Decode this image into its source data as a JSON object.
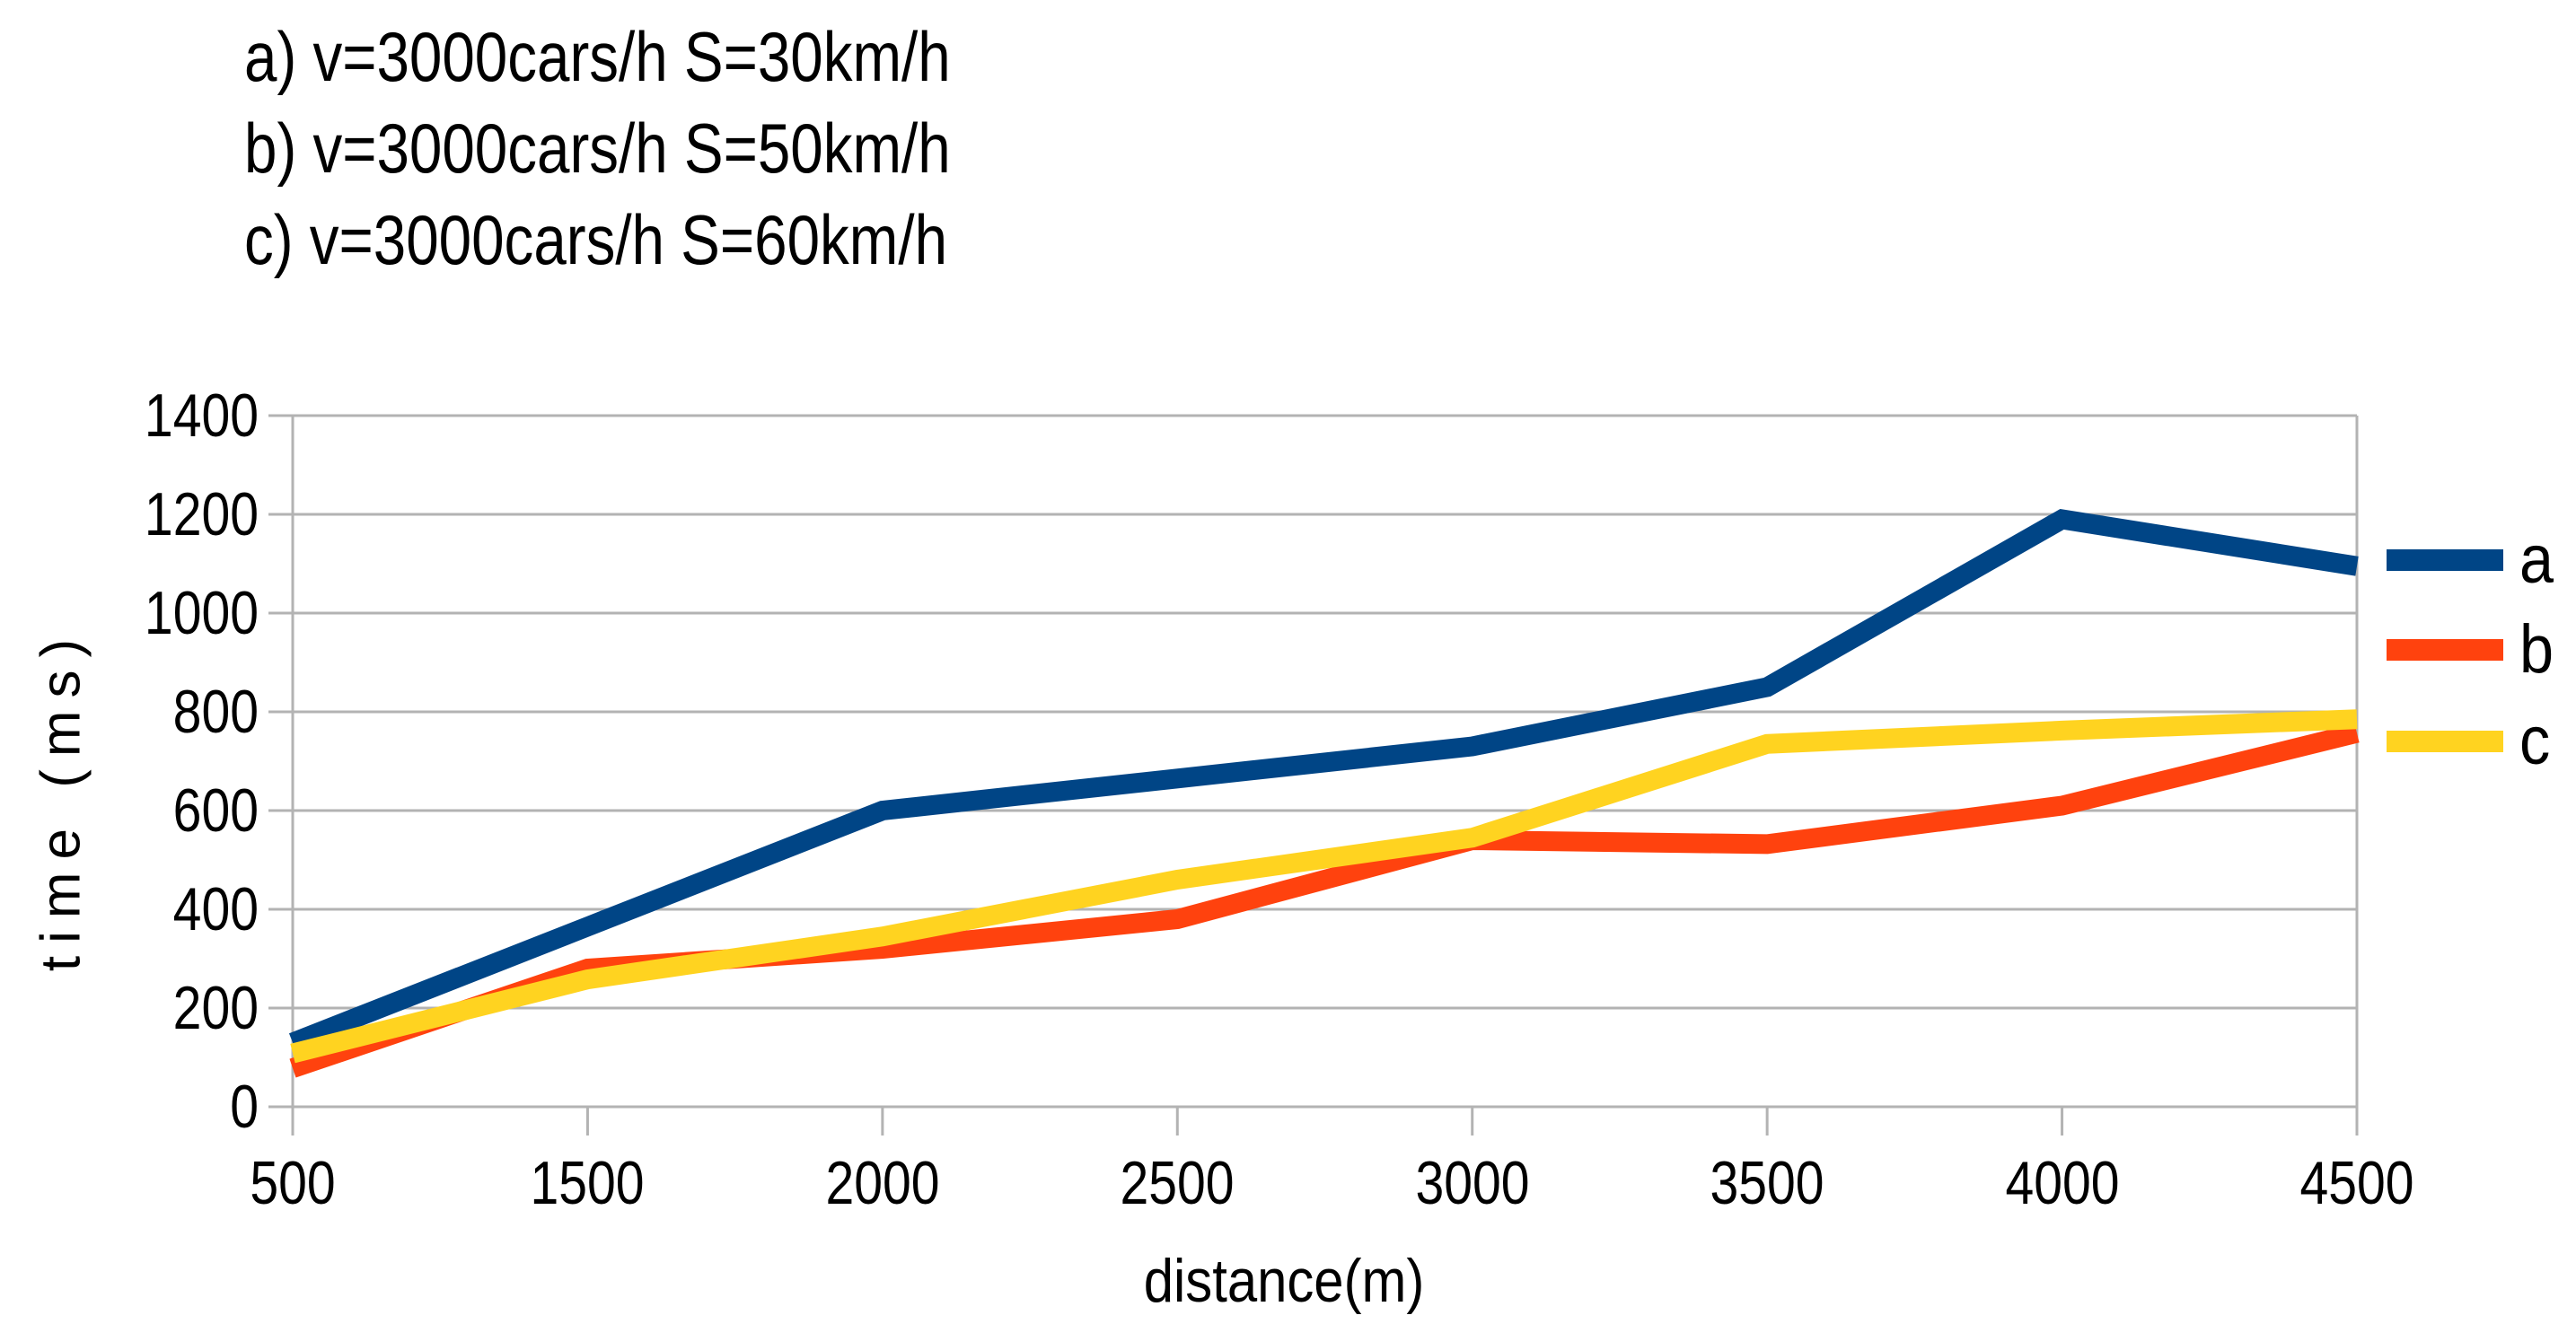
{
  "title": {
    "lines": [
      "a) v=3000cars/h S=30km/h",
      "b) v=3000cars/h S=50km/h",
      "c) v=3000cars/h S=60km/h"
    ]
  },
  "axes": {
    "y_label": "time (ms)",
    "x_label": "distance(m)"
  },
  "legend": {
    "position": "right",
    "items": [
      {
        "label": "a",
        "color": "#004586"
      },
      {
        "label": "b",
        "color": "#FF420E"
      },
      {
        "label": "c",
        "color": "#FFD320"
      }
    ]
  },
  "colors": {
    "background": "#FFFFFF",
    "grid": "#B3B3B3",
    "text": "#000000",
    "series_a_blue": "#004586",
    "series_b_red": "#FF420E",
    "series_c_yellow": "#FFD320"
  },
  "chart_data": {
    "type": "line",
    "title": "",
    "xlabel": "distance(m)",
    "ylabel": "time (ms)",
    "categories": [
      500,
      1500,
      2000,
      2500,
      3000,
      3500,
      4000,
      4500
    ],
    "yticks": [
      0,
      200,
      400,
      600,
      800,
      1000,
      1200,
      1400
    ],
    "ylim": [
      0,
      1400
    ],
    "grid": true,
    "legend_position": "right",
    "series": [
      {
        "name": "a",
        "color": "#004586",
        "values": [
          130,
          365,
          600,
          665,
          730,
          850,
          1190,
          1095
        ]
      },
      {
        "name": "b",
        "color": "#FF420E",
        "values": [
          78,
          280,
          320,
          380,
          540,
          532,
          610,
          757
        ]
      },
      {
        "name": "c",
        "color": "#FFD320",
        "values": [
          108,
          258,
          345,
          460,
          545,
          735,
          762,
          785
        ]
      }
    ]
  }
}
